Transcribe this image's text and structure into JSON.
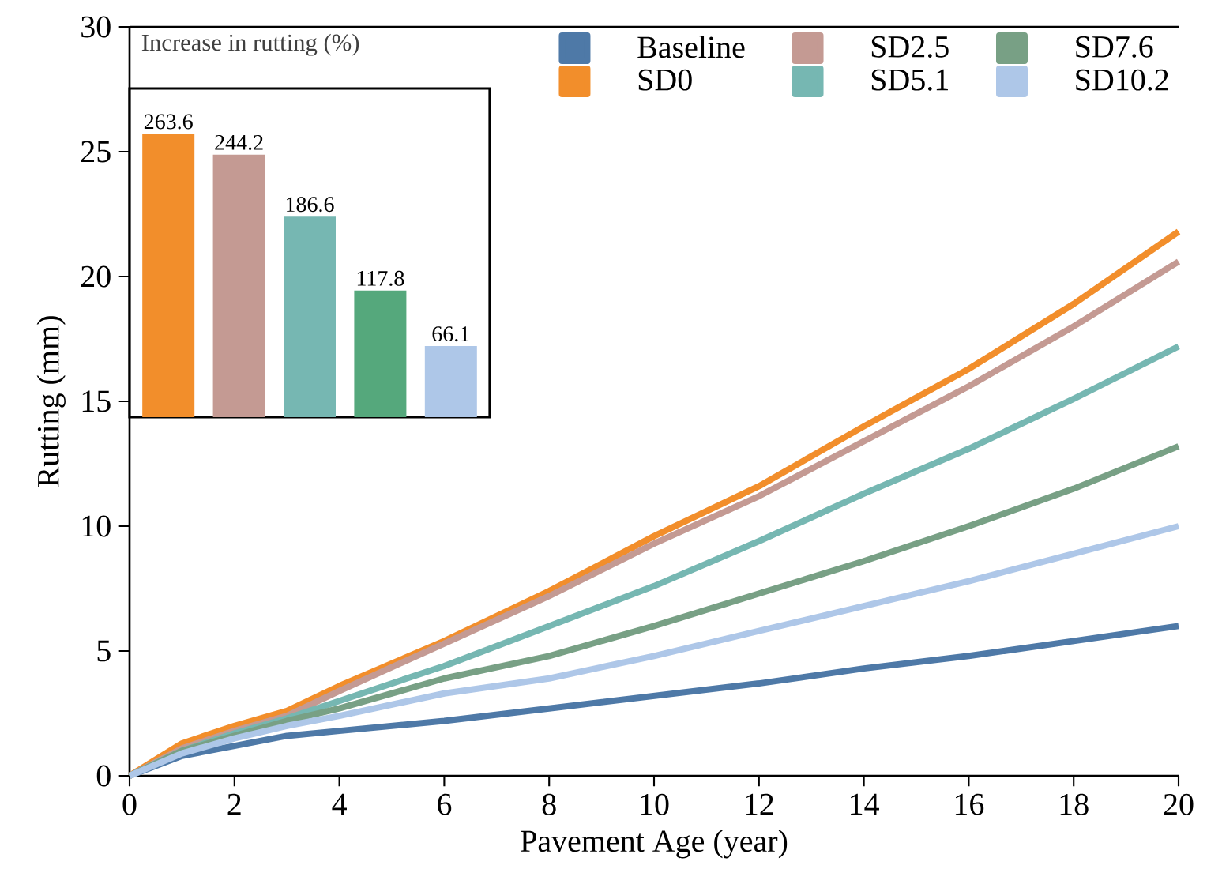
{
  "chart_data": [
    {
      "type": "line",
      "xlabel": "Pavement Age (year)",
      "ylabel": "Rutting (mm)",
      "x": [
        0,
        1,
        2,
        3,
        4,
        6,
        8,
        10,
        12,
        14,
        16,
        18,
        20
      ],
      "xlim": [
        0,
        20
      ],
      "ylim": [
        0,
        30
      ],
      "xticks": [
        0,
        2,
        4,
        6,
        8,
        10,
        12,
        14,
        16,
        18,
        20
      ],
      "yticks": [
        0,
        5,
        10,
        15,
        20,
        25,
        30
      ],
      "legend": "top right",
      "marker": "none",
      "line_style": "solid",
      "series": [
        {
          "name": "Baseline",
          "color": "#4e79a7",
          "values": [
            0,
            0.8,
            1.2,
            1.6,
            1.8,
            2.2,
            2.7,
            3.2,
            3.7,
            4.3,
            4.8,
            5.4,
            6.0
          ]
        },
        {
          "name": "SD0",
          "color": "#f28e2b",
          "values": [
            0,
            1.3,
            2.0,
            2.6,
            3.6,
            5.4,
            7.4,
            9.6,
            11.6,
            14.0,
            16.3,
            18.9,
            21.8
          ]
        },
        {
          "name": "SD2.5",
          "color": "#c49a93",
          "values": [
            0,
            1.1,
            1.8,
            2.4,
            3.4,
            5.3,
            7.2,
            9.3,
            11.2,
            13.4,
            15.6,
            18.0,
            20.6
          ]
        },
        {
          "name": "SD5.1",
          "color": "#76b7b2",
          "values": [
            0,
            1.0,
            1.7,
            2.3,
            3.0,
            4.4,
            6.0,
            7.6,
            9.4,
            11.3,
            13.1,
            15.1,
            17.2
          ]
        },
        {
          "name": "SD7.6",
          "color": "#78a085",
          "values": [
            0,
            1.0,
            1.6,
            2.2,
            2.7,
            3.9,
            4.8,
            6.0,
            7.3,
            8.6,
            10.0,
            11.5,
            13.2
          ]
        },
        {
          "name": "SD10.2",
          "color": "#aec7e8",
          "values": [
            0,
            0.9,
            1.5,
            2.0,
            2.4,
            3.3,
            3.9,
            4.8,
            5.8,
            6.8,
            7.8,
            8.9,
            10.0
          ]
        }
      ]
    },
    {
      "type": "bar",
      "title": "Increase in rutting (%)",
      "categories": [
        null,
        null,
        null,
        null,
        null
      ],
      "values": [
        263.6,
        244.2,
        186.6,
        117.8,
        66.1
      ],
      "colors": [
        "#f28e2b",
        "#c49a93",
        "#76b7b2",
        "#55a87c",
        "#aec7e8"
      ],
      "data_labels": true
    }
  ]
}
